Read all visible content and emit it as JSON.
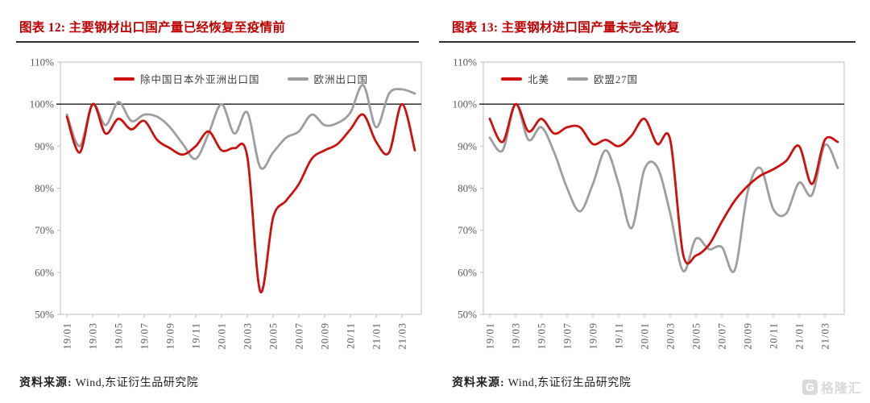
{
  "colors": {
    "title_red": "#c00000",
    "line_red": "#cc1111",
    "line_gray": "#9e9e9e",
    "axis_frame": "#c9c9c9",
    "axis_text": "#595959",
    "ref_line": "#1a1a1a",
    "source_text": "#222222",
    "watermark_gray": "#dadada"
  },
  "watermark": {
    "icon_letter": "G",
    "text": "格隆汇"
  },
  "chart_data": [
    {
      "type": "line",
      "title": "图表 12: 主要钢材出口国产量已经恢复至疫情前",
      "source": {
        "label": "资料来源:",
        "text": " Wind,东证衍生品研究院"
      },
      "categories": [
        "19/01",
        "19/02",
        "19/03",
        "19/04",
        "19/05",
        "19/06",
        "19/07",
        "19/08",
        "19/09",
        "19/10",
        "19/11",
        "19/12",
        "20/01",
        "20/02",
        "20/03",
        "20/04",
        "20/05",
        "20/06",
        "20/07",
        "20/08",
        "20/09",
        "20/10",
        "20/11",
        "20/12",
        "21/01",
        "21/02",
        "21/03",
        "21/04"
      ],
      "series": [
        {
          "name": "除中国日本外亚洲出口国",
          "color": "#cc1111",
          "values": [
            97,
            88.5,
            100,
            93,
            96.5,
            94,
            96,
            91.5,
            89.5,
            88,
            90,
            93.5,
            89,
            89.5,
            87.5,
            55.5,
            73,
            77,
            81,
            87,
            89,
            90.5,
            94,
            97.5,
            91,
            88.5,
            100,
            89
          ]
        },
        {
          "name": "欧洲出口国",
          "color": "#9e9e9e",
          "values": [
            97.5,
            90,
            100,
            95,
            100.5,
            96,
            97.5,
            97,
            94.5,
            90.5,
            87,
            93,
            100,
            93,
            98,
            85,
            88.5,
            92,
            93.5,
            97.5,
            95,
            95.5,
            98,
            104.5,
            94.5,
            102.5,
            103.5,
            102.5
          ]
        }
      ],
      "ylim": [
        50,
        110
      ],
      "ytick_step": 10,
      "ytick_suffix": "%",
      "xtick_every": 2,
      "ref_line": 100,
      "grid": false,
      "legend_position": "top-center"
    },
    {
      "type": "line",
      "title": "图表 13: 主要钢材进口国产量未完全恢复",
      "source": {
        "label": "资料来源:",
        "text": " Wind,东证衍生品研究院"
      },
      "categories": [
        "19/01",
        "19/02",
        "19/03",
        "19/04",
        "19/05",
        "19/06",
        "19/07",
        "19/08",
        "19/09",
        "19/10",
        "19/11",
        "19/12",
        "20/01",
        "20/02",
        "20/03",
        "20/04",
        "20/05",
        "20/06",
        "20/07",
        "20/08",
        "20/09",
        "20/10",
        "20/11",
        "20/12",
        "21/01",
        "21/02",
        "21/03",
        "21/04"
      ],
      "series": [
        {
          "name": "北美",
          "color": "#cc1111",
          "values": [
            96.5,
            91,
            100,
            93.5,
            96.5,
            93,
            94.5,
            94.5,
            90.5,
            91.5,
            90,
            92.5,
            96.5,
            90.5,
            91.5,
            64.3,
            64,
            66.5,
            72,
            77,
            80.5,
            83,
            84.5,
            86.5,
            90,
            81,
            91.5,
            91
          ]
        },
        {
          "name": "欧盟27国",
          "color": "#9e9e9e",
          "values": [
            92,
            89,
            100,
            91.5,
            94.5,
            88.5,
            80,
            74.5,
            81,
            89,
            81,
            70.5,
            84.5,
            85,
            74,
            60.3,
            68,
            65.5,
            66,
            60.5,
            79,
            84.8,
            75,
            74,
            81.3,
            78.4,
            90.3,
            84.8
          ]
        }
      ],
      "ylim": [
        50,
        110
      ],
      "ytick_step": 10,
      "ytick_suffix": "%",
      "xtick_every": 2,
      "ref_line": 100,
      "grid": false,
      "legend_position": "top-left"
    }
  ]
}
